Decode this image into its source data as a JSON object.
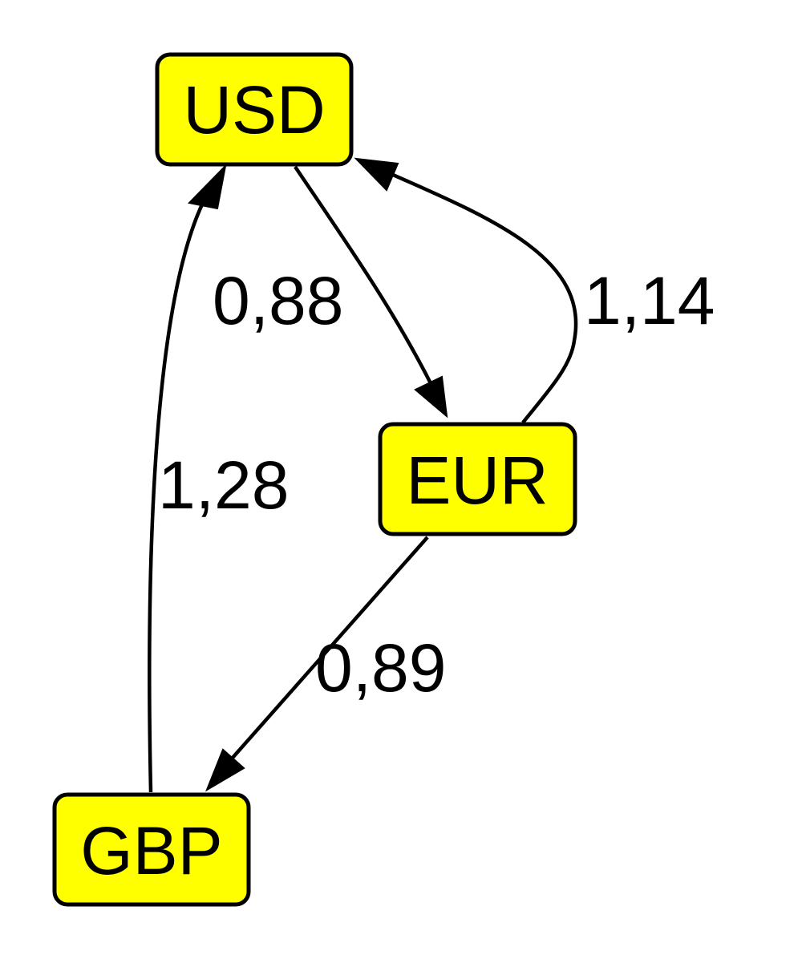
{
  "diagram": {
    "node_fill": "#ffff00",
    "node_stroke": "#000000",
    "edge_color": "#000000",
    "nodes": {
      "usd": {
        "label": "USD"
      },
      "eur": {
        "label": "EUR"
      },
      "gbp": {
        "label": "GBP"
      }
    },
    "edges": [
      {
        "from": "USD",
        "to": "EUR",
        "label": "0,88"
      },
      {
        "from": "EUR",
        "to": "USD",
        "label": "1,14"
      },
      {
        "from": "EUR",
        "to": "GBP",
        "label": "0,89"
      },
      {
        "from": "GBP",
        "to": "USD",
        "label": "1,28"
      }
    ]
  }
}
